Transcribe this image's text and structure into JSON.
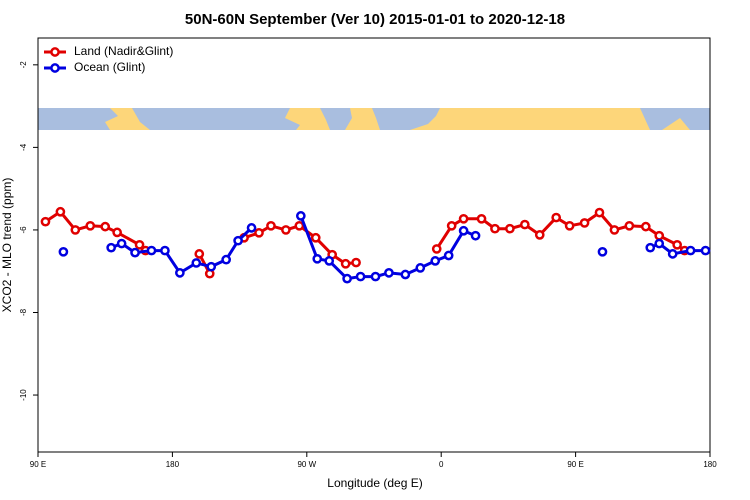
{
  "chart_data": {
    "type": "line",
    "title": "50N-60N September (Ver 10)   2015-01-01 to 2020-12-18",
    "x_label": "Longitude (deg E)",
    "y_label": "XCO2 - MLO trend (ppm)",
    "xlim": [
      90,
      540
    ],
    "ylim": [
      -11.38,
      -1.35
    ],
    "xticks": [
      {
        "value": 90,
        "label": "90 E"
      },
      180,
      {
        "value": 270,
        "label": "90 W"
      },
      {
        "value": 360,
        "label": "0"
      },
      {
        "value": 450,
        "label": "90 E"
      },
      {
        "value": 540,
        "label": "180"
      }
    ],
    "yticks": [
      -2,
      -4,
      -6,
      -8,
      -10
    ],
    "legend": "top-left",
    "grid": false,
    "series": [
      {
        "name": "Land (Nadir&Glint)",
        "color": "#e00000",
        "x": [
          95,
          105,
          115,
          125,
          135,
          143,
          158,
          162,
          180,
          198,
          205,
          215,
          228,
          238,
          246,
          256,
          265,
          276,
          287,
          296,
          303,
          330,
          357,
          367,
          375,
          387,
          396,
          406,
          416,
          426,
          437,
          446,
          456,
          466,
          476,
          486,
          497,
          506,
          518,
          523
        ],
        "values": [
          -5.8,
          -5.56,
          -6.0,
          -5.9,
          -5.92,
          -6.06,
          -6.36,
          -6.5,
          null,
          -6.58,
          -7.06,
          null,
          -6.19,
          -6.07,
          -5.9,
          -6.0,
          -5.9,
          -6.19,
          -6.6,
          -6.82,
          -6.79,
          null,
          -6.46,
          -5.9,
          -5.73,
          -5.73,
          -5.97,
          -5.97,
          -5.87,
          -6.12,
          -5.7,
          -5.9,
          -5.83,
          -5.58,
          -6.0,
          -5.9,
          -5.92,
          -6.14,
          -6.36,
          -6.5
        ]
      },
      {
        "name": "Ocean (Glint)",
        "color": "#0000e0",
        "x": [
          107,
          120,
          139,
          146,
          155,
          166,
          175,
          185,
          196,
          206,
          216,
          224,
          233,
          250,
          266,
          277,
          285,
          297,
          306,
          316,
          325,
          336,
          346,
          356,
          365,
          375,
          383,
          420,
          468,
          485,
          500,
          506,
          515,
          527,
          537
        ],
        "values": [
          -6.53,
          null,
          -6.43,
          -6.33,
          -6.55,
          -6.5,
          -6.5,
          -7.04,
          -6.8,
          -6.89,
          -6.72,
          -6.26,
          -5.95,
          null,
          -5.66,
          -6.7,
          -6.75,
          -7.18,
          -7.13,
          -7.13,
          -7.04,
          -7.08,
          -6.92,
          -6.75,
          -6.62,
          -6.02,
          -6.14,
          null,
          -6.53,
          null,
          -6.43,
          -6.33,
          -6.58,
          -6.5,
          -6.5
        ]
      }
    ]
  }
}
